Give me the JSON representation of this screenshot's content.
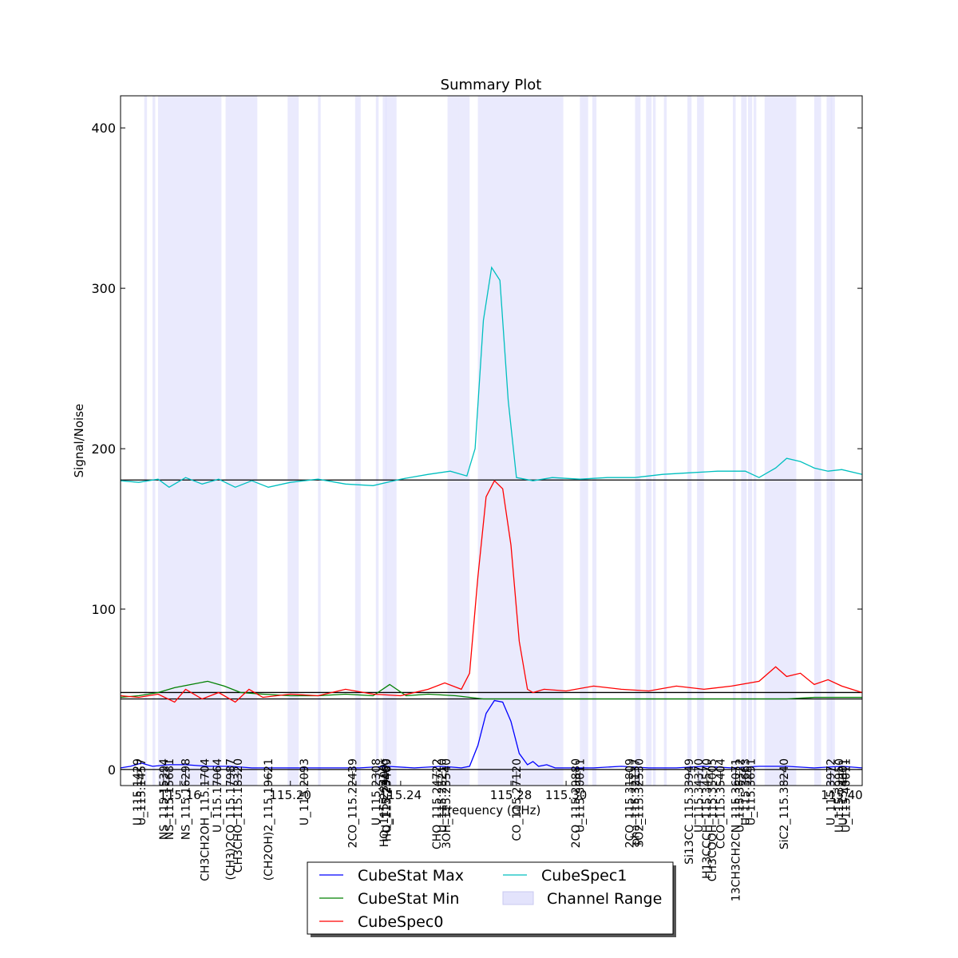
{
  "chart_data": {
    "type": "line",
    "title": "Summary Plot",
    "xlabel": "Frequency (GHz)",
    "ylabel": "Signal/Noise",
    "xlim": [
      115.1384,
      115.4074
    ],
    "ylim": [
      -10,
      420
    ],
    "x_ticks": [
      {
        "value": 115.16,
        "label": "115.16"
      },
      {
        "value": 115.2,
        "label": "115.20"
      },
      {
        "value": 115.24,
        "label": "115.24"
      },
      {
        "value": 115.28,
        "label": "115.28"
      },
      {
        "value": 115.3,
        "label": "115.30"
      },
      {
        "value": 115.4,
        "label": "115.40"
      }
    ],
    "y_ticks": [
      0,
      100,
      200,
      300,
      400
    ],
    "horizontal_lines": [
      0,
      44,
      48,
      180.5
    ],
    "channel_ranges": [
      [
        115.147,
        115.148
      ],
      [
        115.15,
        115.151
      ],
      [
        115.152,
        115.1555
      ],
      [
        115.1555,
        115.175
      ],
      [
        115.1765,
        115.1775
      ],
      [
        115.1775,
        115.188
      ],
      [
        115.199,
        115.203
      ],
      [
        115.21,
        115.211
      ],
      [
        115.2235,
        115.2255
      ],
      [
        115.231,
        115.232
      ],
      [
        115.2335,
        115.235
      ],
      [
        115.2345,
        115.2385
      ],
      [
        115.257,
        115.261
      ],
      [
        115.261,
        115.265
      ],
      [
        115.268,
        115.299
      ],
      [
        115.305,
        115.308
      ],
      [
        115.3095,
        115.311
      ],
      [
        115.325,
        115.327
      ],
      [
        115.329,
        115.331
      ],
      [
        115.3315,
        115.3325
      ],
      [
        115.3355,
        115.3365
      ],
      [
        115.344,
        115.3455
      ],
      [
        115.3475,
        115.35
      ],
      [
        115.3605,
        115.3615
      ],
      [
        115.3635,
        115.3655
      ],
      [
        115.366,
        115.3675
      ],
      [
        115.368,
        115.369
      ],
      [
        115.372,
        115.3835
      ],
      [
        115.39,
        115.3925
      ],
      [
        115.3945,
        115.3965
      ],
      [
        115.396,
        115.3975
      ]
    ],
    "line_markers": [
      {
        "x": 115.1445,
        "label": "U_115.1429"
      },
      {
        "x": 115.146,
        "label": "U_115.1457"
      },
      {
        "x": 115.154,
        "label": "NS_115.15394"
      },
      {
        "x": 115.156,
        "label": "NS_115.15681"
      },
      {
        "x": 115.162,
        "label": "NS_115.16298"
      },
      {
        "x": 115.169,
        "label": "CH3CH2OH_115.1704"
      },
      {
        "x": 115.1735,
        "label": "U_115.17064"
      },
      {
        "x": 115.1782,
        "label": "(CH3)2CO_115.17987"
      },
      {
        "x": 115.181,
        "label": "CH3CHO_115.18320"
      },
      {
        "x": 115.192,
        "label": "(CH2OH)2_115.19621"
      },
      {
        "x": 115.205,
        "label": "U_115.2093"
      },
      {
        "x": 115.2225,
        "label": "2CO_115.22439"
      },
      {
        "x": 115.231,
        "label": "U_115.2308"
      },
      {
        "x": 115.234,
        "label": "HO_115.23409*"
      },
      {
        "x": 115.2345,
        "label": "U_115.23460"
      },
      {
        "x": 115.235,
        "label": "HO_115.23469"
      },
      {
        "x": 115.253,
        "label": "CHO_115.24722"
      },
      {
        "x": 115.255,
        "label": "U_115.25210"
      },
      {
        "x": 115.2565,
        "label": "3OH_115.25540"
      },
      {
        "x": 115.282,
        "label": "CO_115.27120"
      },
      {
        "x": 115.3035,
        "label": "2CO_115.29880"
      },
      {
        "x": 115.305,
        "label": "U_115.30011"
      },
      {
        "x": 115.323,
        "label": "2CO_115.31809"
      },
      {
        "x": 115.325,
        "label": "pha_115.32137"
      },
      {
        "x": 115.3265,
        "label": "SO2_115.32530"
      },
      {
        "x": 115.3445,
        "label": "Si13CC_115.33949"
      },
      {
        "x": 115.348,
        "label": "U_115.34370"
      },
      {
        "x": 115.351,
        "label": "H13CCCH_115.34570"
      },
      {
        "x": 115.353,
        "label": "CH3COOH_115.35005"
      },
      {
        "x": 115.356,
        "label": "CCO_115.35404"
      },
      {
        "x": 115.3615,
        "label": "13CH3CH2CN_115.36071"
      },
      {
        "x": 115.363,
        "label": "U_115.36322"
      },
      {
        "x": 115.365,
        "label": "U_115.3663"
      },
      {
        "x": 115.367,
        "label": "U_115.3691"
      },
      {
        "x": 115.379,
        "label": "SiC2_115.38240"
      },
      {
        "x": 115.396,
        "label": "U_115.3972"
      },
      {
        "x": 115.399,
        "label": "U_115.39950"
      },
      {
        "x": 115.4005,
        "label": "U_115.4001"
      },
      {
        "x": 115.4015,
        "label": "U_115.40011"
      }
    ],
    "series": [
      {
        "name": "CubeStat Max",
        "color": "#0000ff",
        "x": [
          115.1384,
          115.142,
          115.146,
          115.15,
          115.156,
          115.162,
          115.17,
          115.178,
          115.186,
          115.195,
          115.205,
          115.215,
          115.225,
          115.235,
          115.245,
          115.255,
          115.262,
          115.265,
          115.268,
          115.271,
          115.274,
          115.277,
          115.28,
          115.283,
          115.286,
          115.288,
          115.29,
          115.293,
          115.296,
          115.3,
          115.31,
          115.32,
          115.33,
          115.34,
          115.35,
          115.36,
          115.37,
          115.38,
          115.39,
          115.4,
          115.4074
        ],
        "values": [
          1,
          2,
          4,
          2,
          3,
          3,
          2,
          2,
          1,
          1,
          1,
          1,
          1,
          2,
          1,
          2,
          1,
          2,
          15,
          35,
          43,
          42,
          30,
          10,
          3,
          5,
          2,
          3,
          1,
          1,
          1,
          2,
          1,
          1,
          2,
          1,
          2,
          2,
          1,
          2,
          1
        ]
      },
      {
        "name": "CubeStat Min",
        "color": "#008000",
        "x": [
          115.1384,
          115.145,
          115.152,
          115.158,
          115.164,
          115.17,
          115.176,
          115.182,
          115.19,
          115.2,
          115.21,
          115.22,
          115.23,
          115.236,
          115.242,
          115.25,
          115.26,
          115.27,
          115.28,
          115.29,
          115.3,
          115.31,
          115.32,
          115.33,
          115.34,
          115.35,
          115.36,
          115.37,
          115.38,
          115.39,
          115.4,
          115.4074
        ],
        "values": [
          45,
          46,
          48,
          51,
          53,
          55,
          52,
          48,
          47,
          46,
          46,
          47,
          46,
          53,
          46,
          47,
          46,
          44,
          44,
          44,
          44,
          44,
          44,
          44,
          44,
          44,
          44,
          44,
          44,
          45,
          45,
          45
        ]
      },
      {
        "name": "CubeSpec0",
        "color": "#ff0000",
        "x": [
          115.1384,
          115.145,
          115.152,
          115.158,
          115.162,
          115.168,
          115.174,
          115.18,
          115.185,
          115.19,
          115.2,
          115.21,
          115.22,
          115.23,
          115.24,
          115.25,
          115.256,
          115.262,
          115.265,
          115.268,
          115.271,
          115.274,
          115.277,
          115.28,
          115.283,
          115.286,
          115.288,
          115.292,
          115.3,
          115.31,
          115.32,
          115.33,
          115.34,
          115.35,
          115.36,
          115.37,
          115.376,
          115.38,
          115.385,
          115.39,
          115.395,
          115.4,
          115.4074
        ],
        "values": [
          46,
          45,
          47,
          42,
          50,
          44,
          48,
          42,
          50,
          45,
          47,
          46,
          50,
          47,
          46,
          50,
          54,
          50,
          60,
          120,
          170,
          180,
          175,
          140,
          80,
          50,
          48,
          50,
          49,
          52,
          50,
          49,
          52,
          50,
          52,
          55,
          64,
          58,
          60,
          53,
          56,
          52,
          48
        ]
      },
      {
        "name": "CubeSpec1",
        "color": "#00bfbf",
        "x": [
          115.1384,
          115.145,
          115.152,
          115.156,
          115.162,
          115.168,
          115.174,
          115.18,
          115.186,
          115.192,
          115.2,
          115.21,
          115.22,
          115.23,
          115.24,
          115.25,
          115.258,
          115.264,
          115.267,
          115.27,
          115.273,
          115.276,
          115.279,
          115.282,
          115.285,
          115.288,
          115.295,
          115.305,
          115.315,
          115.325,
          115.335,
          115.345,
          115.355,
          115.365,
          115.37,
          115.376,
          115.38,
          115.385,
          115.39,
          115.395,
          115.4,
          115.4074
        ],
        "values": [
          180,
          179,
          181,
          176,
          182,
          178,
          181,
          176,
          180,
          176,
          179,
          181,
          178,
          177,
          181,
          184,
          186,
          183,
          200,
          280,
          313,
          305,
          230,
          182,
          181,
          180,
          182,
          181,
          182,
          182,
          184,
          185,
          186,
          186,
          182,
          188,
          194,
          192,
          188,
          186,
          187,
          184
        ]
      }
    ],
    "legend": {
      "placement": "bottom-center",
      "entries": [
        "CubeStat Max",
        "CubeStat Min",
        "CubeSpec0",
        "CubeSpec1",
        "Channel Range"
      ],
      "channel_range_color": "#e3e3fc"
    }
  }
}
